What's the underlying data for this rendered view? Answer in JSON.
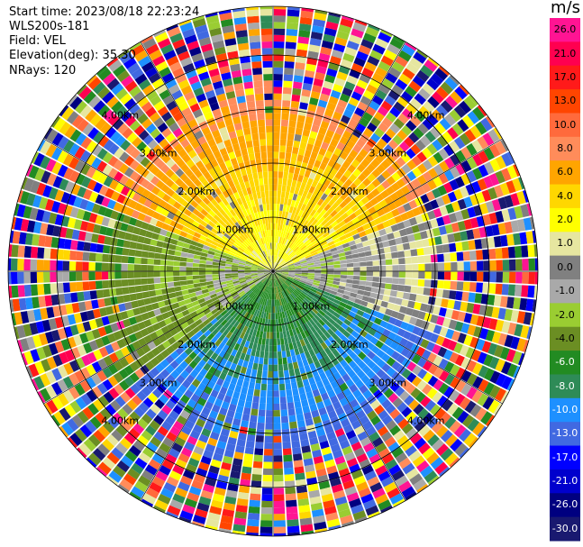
{
  "header": {
    "start_time": "Start time: 2023/08/18 22:23:24",
    "instrument": "WLS200s-181",
    "field": "Field: VEL",
    "elevation": "Elevation(deg): 35.30",
    "nrays": "NRays: 120"
  },
  "chart_data": {
    "type": "heatmap",
    "projection": "polar-ppi",
    "field": "VEL",
    "units": "m/s",
    "nrays": 120,
    "elevation_deg": 35.3,
    "range_rings_km": [
      1.0,
      2.0,
      3.0,
      4.0
    ],
    "max_range_km": 4.9,
    "ring_labels": [
      "1.00km",
      "2.00km",
      "3.00km",
      "4.00km"
    ],
    "colorbar": {
      "title": "m/s",
      "ticks": [
        "26.0",
        "21.0",
        "17.0",
        "13.0",
        "10.0",
        "8.0",
        "6.0",
        "4.0",
        "2.0",
        "1.0",
        "0.0",
        "-1.0",
        "-2.0",
        "-4.0",
        "-6.0",
        "-8.0",
        "-10.0",
        "-13.0",
        "-17.0",
        "-21.0",
        "-26.0",
        "-30.0"
      ],
      "colors": [
        "#ff1493",
        "#ff0050",
        "#ff1a1a",
        "#ff4500",
        "#ff6a3c",
        "#ff8c5a",
        "#ffa500",
        "#ffd700",
        "#ffff00",
        "#e6e6a0",
        "#808080",
        "#a9a9a9",
        "#9acd32",
        "#6b8e23",
        "#228b22",
        "#2e8b57",
        "#1e90ff",
        "#4169e1",
        "#0000ff",
        "#0000cd",
        "#000080",
        "#191970"
      ]
    },
    "sectors": [
      {
        "azimuth_range_deg": [
          290,
          70
        ],
        "near_velocity": 2.0,
        "far_velocity": 10.0,
        "description_colors": "yellow near, orange-red far"
      },
      {
        "azimuth_range_deg": [
          230,
          290
        ],
        "near_velocity": -1.0,
        "far_velocity": -4.0
      },
      {
        "azimuth_range_deg": [
          70,
          110
        ],
        "near_velocity": -1.0,
        "far_velocity": 2.0
      },
      {
        "azimuth_range_deg": [
          110,
          230
        ],
        "near_velocity": -4.0,
        "far_velocity": -13.0
      }
    ],
    "noise_range_km": 4.0
  }
}
